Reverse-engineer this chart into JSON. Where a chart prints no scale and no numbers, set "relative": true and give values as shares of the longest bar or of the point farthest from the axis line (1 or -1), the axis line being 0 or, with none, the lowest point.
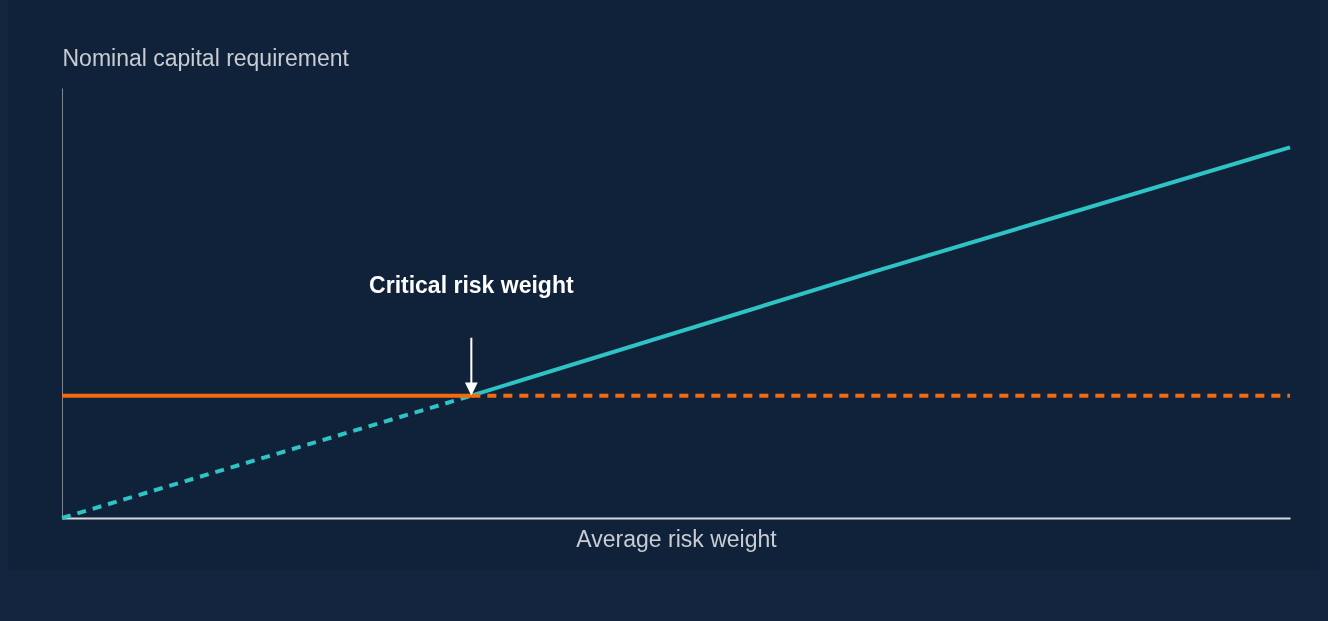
{
  "chart_data": {
    "type": "line",
    "relative": true,
    "xlabel": "Average risk weight",
    "ylabel": "Nominal capital requirement",
    "categories": [
      null,
      null,
      null,
      null
    ],
    "series": [
      {
        "color": "#2ec4c6",
        "line_style": "dashed",
        "values": [
          0,
          0.33,
          null,
          null
        ]
      },
      {
        "color": "#2ec4c6",
        "line_style": "solid",
        "values": [
          null,
          0.33,
          0.67,
          1
        ]
      },
      {
        "color": "#f26b0f",
        "line_style": "solid",
        "values": [
          0.33,
          0.33,
          null,
          null
        ]
      },
      {
        "color": "#f26b0f",
        "line_style": "dashed",
        "values": [
          null,
          0.33,
          0.33,
          0.33
        ]
      }
    ],
    "annotations": [
      "Critical risk weight"
    ]
  }
}
